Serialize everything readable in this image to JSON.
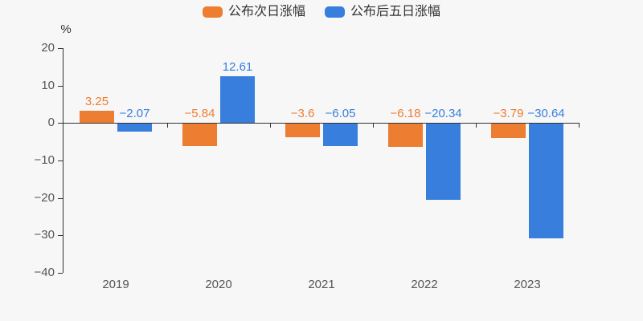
{
  "chart": {
    "background": "#f7f7f7",
    "axis_color": "#333333",
    "tick_label_color": "#555555",
    "unit_label": "%"
  },
  "chart_data": {
    "type": "bar",
    "title": "",
    "categories": [
      "2019",
      "2020",
      "2021",
      "2022",
      "2023"
    ],
    "series": [
      {
        "name": "公布次日涨幅",
        "color": "#ed7d31",
        "values": [
          3.25,
          -5.84,
          -3.6,
          -6.18,
          -3.79
        ]
      },
      {
        "name": "公布后五日涨幅",
        "color": "#387edc",
        "values": [
          -2.07,
          12.61,
          -6.05,
          -20.34,
          -30.64
        ]
      }
    ],
    "xlabel": "",
    "ylabel": "%",
    "ylim": [
      -40,
      20
    ],
    "yticks": [
      20,
      10,
      0,
      -10,
      -20,
      -30,
      -40
    ],
    "legend_position": "top",
    "value_labels": true,
    "grid": false
  }
}
